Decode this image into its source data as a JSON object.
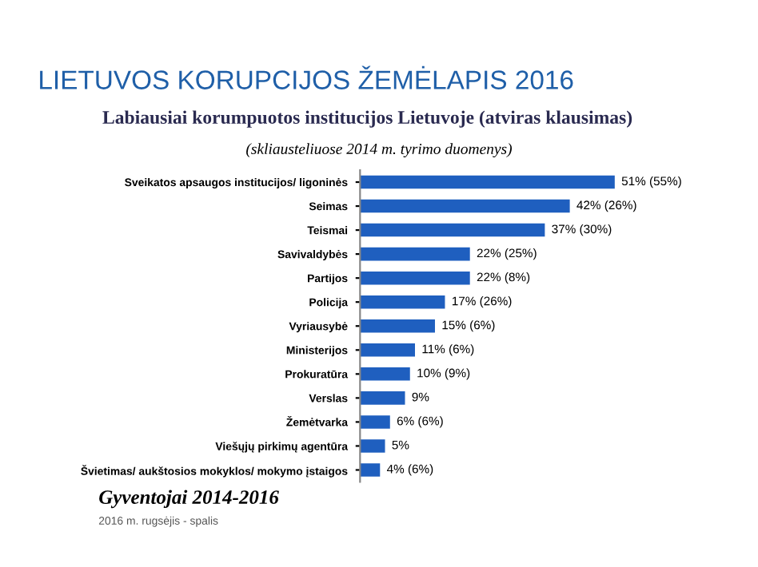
{
  "chart_data": {
    "type": "bar",
    "orientation": "horizontal",
    "title": "LIETUVOS KORUPCIJOS ŽEMĖLAPIS 2016",
    "subtitle": "Labiausiai korumpuotos institucijos Lietuvoje (atviras klausimas)",
    "annotations": [
      "(skliausteliuose 2014 m. tyrimo duomenys)",
      "Gyventojai 2014-2016",
      "2016 m. rugsėjis - spalis"
    ],
    "categories": [
      "Sveikatos apsaugos institucijos/ ligoninės",
      "Seimas",
      "Teismai",
      "Savivaldybės",
      "Partijos",
      "Policija",
      "Vyriausybė",
      "Ministerijos",
      "Prokuratūra",
      "Verslas",
      "Žemėtvarka",
      "Viešųjų pirkimų agentūra",
      "Švietimas/ aukštosios mokyklos/ mokymo įstaigos"
    ],
    "values": [
      51,
      42,
      37,
      22,
      22,
      17,
      15,
      11,
      10,
      9,
      6,
      5,
      4
    ],
    "value_labels": [
      "51% (55%)",
      "42% (26%)",
      "37% (30%)",
      "22% (25%)",
      "22% (8%)",
      "17% (26%)",
      "15% (6%)",
      "11% (6%)",
      "10% (9%)",
      "9%",
      "6% (6%)",
      "5%",
      "4% (6%)"
    ],
    "color": "#1f5fbf",
    "grid": false,
    "legend": false
  }
}
